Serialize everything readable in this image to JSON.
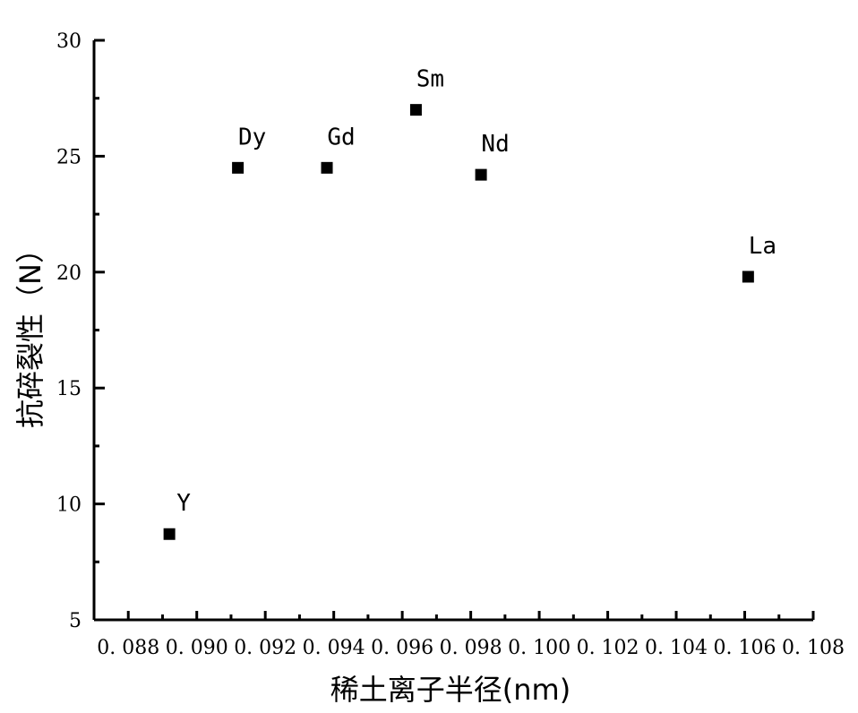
{
  "chart_data": {
    "type": "scatter",
    "title": "",
    "xlabel": "稀土离子半径(nm)",
    "ylabel": "抗碎裂性（N）",
    "xlim": [
      0.087,
      0.108
    ],
    "ylim": [
      5,
      30
    ],
    "x_ticks": [
      "0.088",
      "0.090",
      "0.092",
      "0.094",
      "0.096",
      "0.098",
      "0.100",
      "0.102",
      "0.104",
      "0.106",
      "0.108"
    ],
    "x_tick_values": [
      0.088,
      0.09,
      0.092,
      0.094,
      0.096,
      0.098,
      0.1,
      0.102,
      0.104,
      0.106,
      0.108
    ],
    "x_tick_labels": [
      "0. 088",
      "0. 090",
      "0. 092",
      "0. 094",
      "0. 096",
      "0. 098",
      "0. 100",
      "0. 102",
      "0. 104",
      "0. 106",
      "0. 108"
    ],
    "y_ticks": [
      "5",
      "10",
      "15",
      "20",
      "25",
      "30"
    ],
    "y_tick_values": [
      5,
      10,
      15,
      20,
      25,
      30
    ],
    "grid": false,
    "marker": "square",
    "marker_color": "#000000",
    "points": [
      {
        "label": "Y",
        "x": 0.0892,
        "y": 8.7
      },
      {
        "label": "Dy",
        "x": 0.0912,
        "y": 24.5
      },
      {
        "label": "Gd",
        "x": 0.0938,
        "y": 24.5
      },
      {
        "label": "Sm",
        "x": 0.0964,
        "y": 27.0
      },
      {
        "label": "Nd",
        "x": 0.0983,
        "y": 24.2
      },
      {
        "label": "La",
        "x": 0.1061,
        "y": 19.8
      }
    ]
  }
}
